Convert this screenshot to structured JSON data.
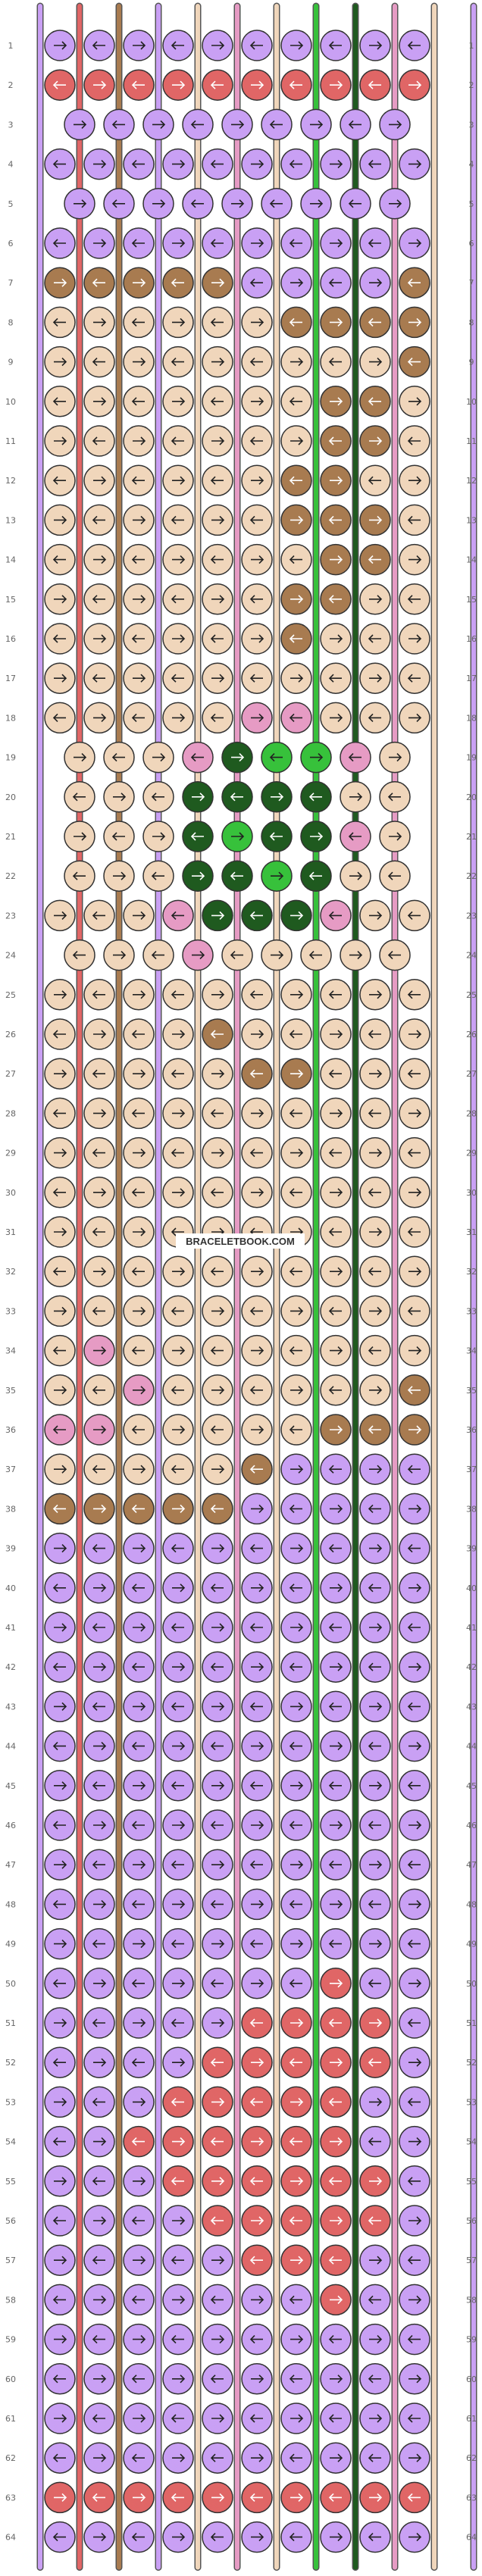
{
  "pattern": {
    "rows": 64,
    "knots_per_full_row": 10,
    "colors": {
      "A": "#c9a0f4",
      "B": "#e06666",
      "C": "#a87b50",
      "D": "#f0d6bb",
      "E": "#e69bc4",
      "F": "#37c13b",
      "G": "#1f5a1f"
    },
    "string_order": [
      "A",
      "B",
      "C",
      "A",
      "D",
      "E",
      "D",
      "F",
      "G",
      "E",
      "D",
      "A"
    ],
    "row_labels": [
      "1",
      "2",
      "3",
      "4",
      "5",
      "6",
      "7",
      "8",
      "9",
      "10",
      "11",
      "12",
      "13",
      "14",
      "15",
      "16",
      "17",
      "18",
      "19",
      "20",
      "21",
      "22",
      "23",
      "24",
      "25",
      "26",
      "27",
      "28",
      "29",
      "30",
      "31",
      "32",
      "33",
      "34",
      "35",
      "36",
      "37",
      "38",
      "39",
      "40",
      "41",
      "42",
      "43",
      "44",
      "45",
      "46",
      "47",
      "48",
      "49",
      "50",
      "51",
      "52",
      "53",
      "54",
      "55",
      "56",
      "57",
      "58",
      "59",
      "60",
      "61",
      "62",
      "63",
      "64"
    ],
    "knot_colors": [
      "AAAAAAAAAA",
      "BBBBBBBBBB",
      "AAAAAAAAA",
      "AAAAAAAAAA",
      "AAAAAAAAA",
      "AAAAAAAAAA",
      "CCCCCAAAAC",
      "DDDDDDCCCC",
      "DDDDDDDDDC",
      "DDDDDDDCCD",
      "DDDDDDDCCD",
      "DDDDDDCCDD",
      "DDDDDDCCCD",
      "DDDDDDDCCD",
      "DDDDDDCCDD",
      "DDDDDDCDDD",
      "DDDDDDDDDD",
      "DDDDDEEDDD",
      "DDDEGFFED",
      "DDDGGGGDD",
      "DDDGFGGED",
      "DDDGGFGDD",
      "DDDEGGGEDD",
      "DDDEDDDDD",
      "DDDDDDDDDD",
      "DDDDCDDDDD",
      "DDDDDCCDDD",
      "DDDDDDDDDD",
      "DDDDDDDDDD",
      "DDDDDDDDDD",
      "DDDDDDDDDD",
      "DDDDDDDDDD",
      "DDDDDDDDDD",
      "DEDDDDDDDD",
      "DDEDDDDDDC",
      "EEDDDDDCCC",
      "DDDDDCAAAA",
      "CCCCCAAAAA",
      "AAAAAAAAAA",
      "AAAAAAAAAA",
      "AAAAAAAAAA",
      "AAAAAAAAAA",
      "AAAAAAAAAA",
      "AAAAAAAAAA",
      "AAAAAAAAAA",
      "AAAAAAAAAA",
      "AAAAAAAAAA",
      "AAAAAAAAAA",
      "AAAAAAAAAA",
      "AAAAAAABAA",
      "AAAAABBBBA",
      "AAAABBBBBA",
      "AAABBBBBAA",
      "AABBBBBBAA",
      "AAABBBBBBA",
      "AAAABBBBBA",
      "AAAAABBBAA",
      "AAAAAAABAA",
      "AAAAAAAAAA",
      "AAAAAAAAAA",
      "AAAAAAAAAA",
      "AAAAAAAAAA",
      "BBBBBBBBBB",
      "AAAAAAAAAA"
    ],
    "watermark": "BRACELETBOOK.COM"
  }
}
